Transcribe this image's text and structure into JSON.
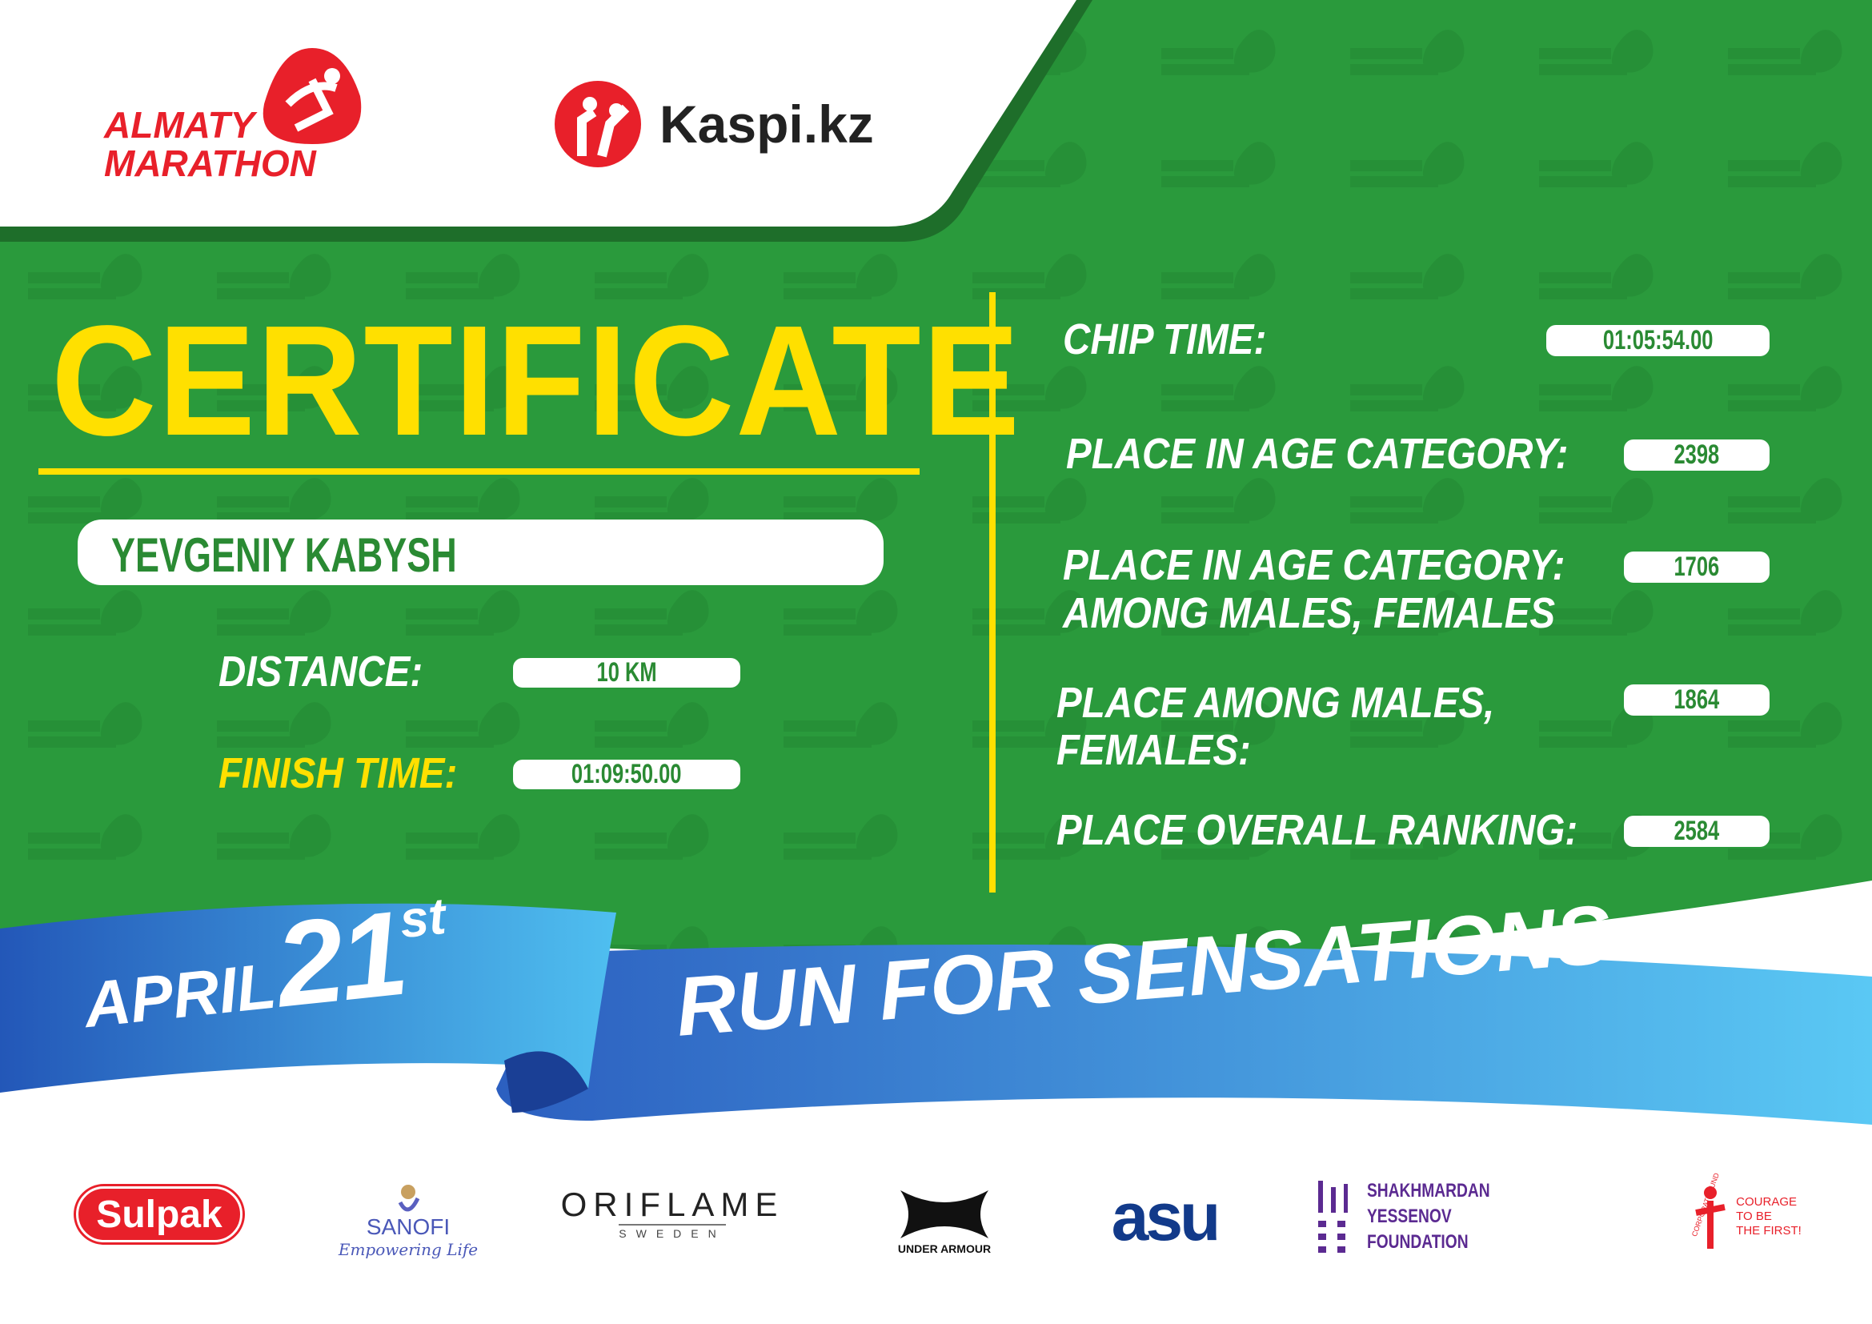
{
  "header": {
    "event_logo": "ALMATY MARATHON",
    "event_logo_line1": "ALMATY",
    "event_logo_line2": "MARATHON",
    "partner_logo": "Kaspi.kz"
  },
  "title": "CERTIFICATE",
  "participant": {
    "name": "YEVGENIY KABYSH"
  },
  "left_fields": [
    {
      "label": "DISTANCE:",
      "value": "10 KM"
    },
    {
      "label": "FINISH TIME:",
      "value": "01:09:50.00"
    }
  ],
  "right_fields": [
    {
      "label": "CHIP TIME:",
      "value": "01:05:54.00"
    },
    {
      "label": "PLACE IN AGE CATEGORY:",
      "value": "2398"
    },
    {
      "label_line1": "PLACE IN AGE CATEGORY:",
      "label_line2": "AMONG MALES, FEMALES",
      "value": "1706"
    },
    {
      "label_line1": "PLACE AMONG MALES,",
      "label_line2": "FEMALES:",
      "value": "1864"
    },
    {
      "label": "PLACE OVERALL RANKING:",
      "value": "2584"
    }
  ],
  "banner": {
    "month": "APRIL",
    "day": "21",
    "suffix": "st",
    "slogan": "RUN FOR SENSATIONS"
  },
  "sponsors": [
    {
      "name": "Sulpak"
    },
    {
      "name": "SANOFI",
      "tagline": "Empowering Life"
    },
    {
      "name": "ORIFLAME",
      "tagline": "SWEDEN"
    },
    {
      "name": "UNDER ARMOUR"
    },
    {
      "name": "asu"
    },
    {
      "name_line1": "SHAKHMARDAN YESSENOV",
      "name_line2": "FOUNDATION"
    },
    {
      "name": "CORPORATE FUND",
      "tagline_line1": "COURAGE",
      "tagline_line2": "TO BE",
      "tagline_line3": "THE FIRST!"
    }
  ],
  "colors": {
    "green": "#2a9a3c",
    "yellow": "#ffe000",
    "red": "#e8202a",
    "blue": "#2f7fd0",
    "white": "#ffffff"
  }
}
